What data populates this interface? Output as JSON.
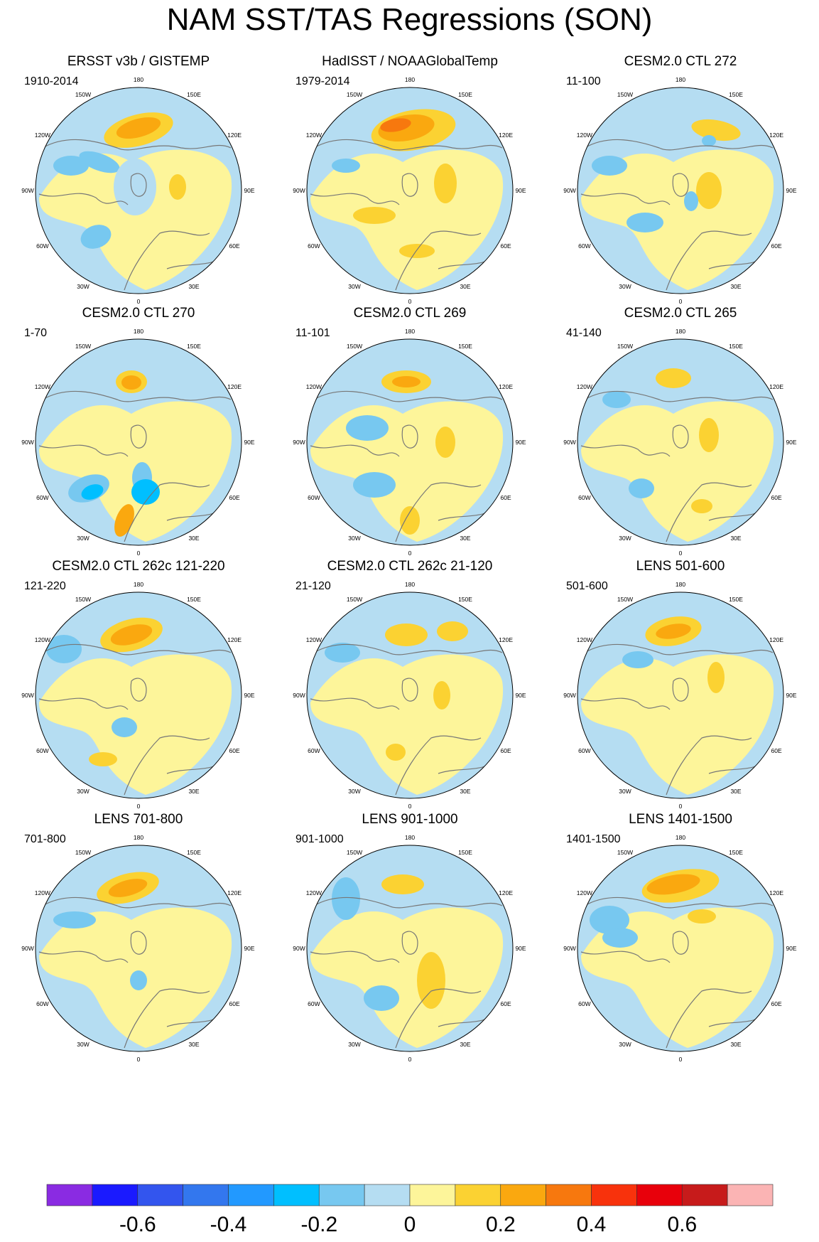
{
  "title": "NAM SST/TAS Regressions (SON)",
  "colors": {
    "neg07": "#8a2be2",
    "neg06": "#1a1aff",
    "neg05": "#3355ee",
    "neg04": "#3377ee",
    "neg03": "#2299ff",
    "neg02": "#00bfff",
    "neg01": "#77c8f0",
    "zero_neg": "#b5ddf2",
    "zero_pos": "#fdf59a",
    "pos01": "#fbd232",
    "pos02": "#faa80f",
    "pos03": "#f7780e",
    "pos04": "#f8320c",
    "pos05": "#e8000b",
    "pos06": "#c71b1b",
    "pos07": "#fbb4b4",
    "coast": "#777777",
    "missing": "#ffffff"
  },
  "longitude_labels": [
    "180",
    "150E",
    "120E",
    "90E",
    "60E",
    "30E",
    "0",
    "30W",
    "60W",
    "90W",
    "120W",
    "150W"
  ],
  "panels": [
    {
      "title": "ERSST v3b / GISTEMP",
      "period": "1910-2014"
    },
    {
      "title": "HadISST / NOAAGlobalTemp",
      "period": "1979-2014"
    },
    {
      "title": "CESM2.0 CTL 272",
      "period": "11-100"
    },
    {
      "title": "CESM2.0 CTL 270",
      "period": "1-70"
    },
    {
      "title": "CESM2.0 CTL 269",
      "period": "11-101"
    },
    {
      "title": "CESM2.0 CTL 265",
      "period": "41-140"
    },
    {
      "title": "CESM2.0 CTL 262c 121-220",
      "period": "121-220"
    },
    {
      "title": "CESM2.0 CTL 262c 21-120",
      "period": "21-120"
    },
    {
      "title": "LENS 501-600",
      "period": "501-600"
    },
    {
      "title": "LENS 701-800",
      "period": "701-800"
    },
    {
      "title": "LENS 901-1000",
      "period": "901-1000"
    },
    {
      "title": "LENS 1401-1500",
      "period": "1401-1500"
    }
  ],
  "colorbar": {
    "colors": [
      "#8a2be2",
      "#1a1aff",
      "#3355ee",
      "#3377ee",
      "#2299ff",
      "#00bfff",
      "#77c8f0",
      "#b5ddf2",
      "#fdf59a",
      "#fbd232",
      "#faa80f",
      "#f7780e",
      "#f8320c",
      "#e8000b",
      "#c71b1b",
      "#fbb4b4"
    ],
    "labels": [
      "-0.6",
      "-0.4",
      "-0.2",
      "0",
      "0.2",
      "0.4",
      "0.6"
    ]
  }
}
